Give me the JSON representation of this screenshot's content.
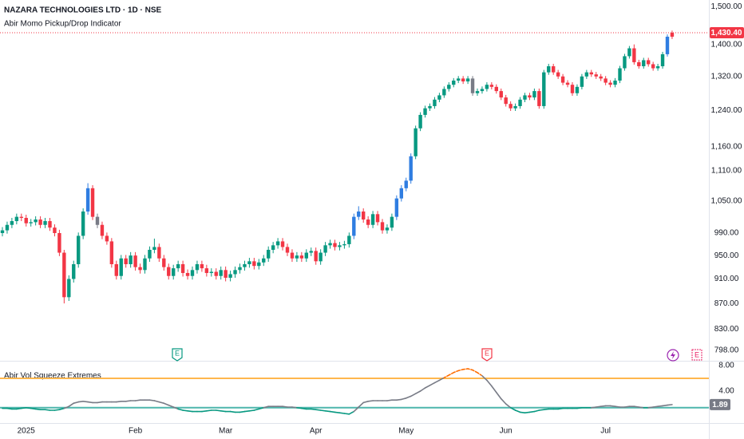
{
  "chart_data": [
    {
      "type": "candlestick",
      "title": "NAZARA TECHNOLOGIES LTD · 1D · NSE",
      "subtitle": "Abir Momo Pickup/Drop Indicator",
      "categories": [
        null,
        null,
        null,
        null,
        null,
        "2025",
        null,
        null,
        null,
        null,
        null,
        null,
        null,
        null,
        null,
        null,
        null,
        null,
        null,
        null,
        null,
        null,
        null,
        null,
        null,
        null,
        null,
        null,
        "Feb",
        null,
        null,
        null,
        null,
        null,
        null,
        null,
        null,
        null,
        null,
        null,
        null,
        null,
        null,
        null,
        null,
        null,
        null,
        "Mar",
        null,
        null,
        null,
        null,
        null,
        null,
        null,
        null,
        null,
        null,
        null,
        null,
        null,
        null,
        null,
        null,
        null,
        null,
        "Apr",
        null,
        null,
        null,
        null,
        null,
        null,
        null,
        null,
        null,
        null,
        null,
        null,
        null,
        null,
        null,
        null,
        null,
        null,
        "May",
        null,
        null,
        null,
        null,
        null,
        null,
        null,
        null,
        null,
        null,
        null,
        null,
        null,
        null,
        null,
        null,
        null,
        null,
        null,
        null,
        "Jun",
        null,
        null,
        null,
        null,
        null,
        null,
        null,
        null,
        null,
        null,
        null,
        null,
        null,
        null,
        null,
        null,
        null,
        null,
        null,
        null,
        "Jul",
        null,
        null,
        null,
        null,
        null,
        null,
        null,
        null,
        null,
        null,
        null,
        null,
        null,
        null
      ],
      "open": [
        990,
        995,
        1005,
        1012,
        1020,
        1018,
        1008,
        1010,
        1015,
        1005,
        1012,
        1000,
        990,
        955,
        880,
        910,
        935,
        985,
        1030,
        1075,
        1020,
        1005,
        985,
        975,
        935,
        915,
        945,
        935,
        950,
        930,
        925,
        945,
        960,
        965,
        945,
        930,
        915,
        928,
        935,
        920,
        915,
        925,
        935,
        928,
        920,
        922,
        915,
        925,
        912,
        918,
        925,
        930,
        935,
        940,
        932,
        938,
        945,
        960,
        968,
        975,
        965,
        955,
        945,
        950,
        945,
        955,
        958,
        940,
        955,
        968,
        972,
        965,
        968,
        970,
        985,
        1020,
        1030,
        1015,
        1005,
        1025,
        1010,
        995,
        1000,
        1020,
        1055,
        1075,
        1090,
        1140,
        1200,
        1230,
        1245,
        1250,
        1265,
        1275,
        1290,
        1300,
        1310,
        1315,
        1308,
        1315,
        1280,
        1285,
        1290,
        1300,
        1295,
        1285,
        1270,
        1255,
        1245,
        1250,
        1265,
        1275,
        1270,
        1285,
        1250,
        1330,
        1345,
        1330,
        1320,
        1305,
        1300,
        1280,
        1295,
        1320,
        1330,
        1325,
        1320,
        1315,
        1305,
        1300,
        1310,
        1340,
        1370,
        1390,
        1355,
        1345,
        1360,
        1350,
        1340,
        1345,
        1375,
        1420
      ],
      "high": [
        1001,
        1011,
        1018,
        1026,
        1026,
        1024,
        1016,
        1021,
        1021,
        1018,
        1018,
        1006,
        996,
        960,
        916,
        941,
        991,
        1036,
        1085,
        1081,
        1026,
        1011,
        991,
        981,
        941,
        951,
        951,
        956,
        956,
        936,
        951,
        966,
        980,
        971,
        951,
        936,
        934,
        941,
        941,
        926,
        931,
        941,
        941,
        934,
        928,
        928,
        931,
        931,
        924,
        931,
        936,
        941,
        946,
        946,
        944,
        951,
        966,
        974,
        981,
        981,
        971,
        961,
        956,
        956,
        961,
        964,
        964,
        961,
        974,
        978,
        978,
        974,
        976,
        991,
        1026,
        1040,
        1036,
        1021,
        1031,
        1031,
        1016,
        1006,
        1026,
        1061,
        1081,
        1096,
        1146,
        1206,
        1236,
        1251,
        1256,
        1271,
        1281,
        1296,
        1306,
        1316,
        1321,
        1321,
        1321,
        1321,
        1291,
        1296,
        1306,
        1306,
        1301,
        1291,
        1276,
        1261,
        1256,
        1271,
        1281,
        1281,
        1291,
        1291,
        1336,
        1351,
        1351,
        1336,
        1326,
        1311,
        1306,
        1301,
        1326,
        1336,
        1336,
        1331,
        1326,
        1321,
        1311,
        1316,
        1346,
        1376,
        1396,
        1400,
        1361,
        1366,
        1366,
        1356,
        1351,
        1381,
        1426,
        1436
      ],
      "low": [
        984,
        989,
        999,
        1006,
        1012,
        1002,
        1002,
        1004,
        999,
        999,
        994,
        984,
        949,
        870,
        874,
        904,
        929,
        979,
        1024,
        1014,
        999,
        979,
        969,
        929,
        909,
        909,
        929,
        929,
        924,
        919,
        919,
        939,
        954,
        939,
        924,
        909,
        909,
        922,
        914,
        909,
        909,
        919,
        922,
        914,
        914,
        909,
        909,
        906,
        906,
        912,
        919,
        924,
        929,
        926,
        926,
        932,
        939,
        954,
        962,
        959,
        949,
        939,
        939,
        939,
        939,
        949,
        934,
        934,
        949,
        962,
        959,
        959,
        962,
        964,
        979,
        1014,
        1009,
        999,
        999,
        1004,
        989,
        989,
        994,
        1014,
        1049,
        1069,
        1084,
        1134,
        1194,
        1224,
        1239,
        1244,
        1259,
        1269,
        1284,
        1294,
        1304,
        1302,
        1302,
        1274,
        1274,
        1279,
        1284,
        1289,
        1279,
        1264,
        1249,
        1239,
        1239,
        1244,
        1259,
        1264,
        1264,
        1244,
        1244,
        1324,
        1324,
        1314,
        1299,
        1294,
        1274,
        1274,
        1289,
        1314,
        1319,
        1314,
        1309,
        1299,
        1294,
        1294,
        1304,
        1334,
        1364,
        1349,
        1339,
        1339,
        1344,
        1334,
        1334,
        1339,
        1369,
        1414
      ],
      "close": [
        995,
        1005,
        1012,
        1020,
        1018,
        1008,
        1010,
        1015,
        1005,
        1012,
        1000,
        990,
        955,
        880,
        910,
        935,
        985,
        1030,
        1075,
        1020,
        1005,
        985,
        975,
        935,
        915,
        945,
        935,
        950,
        930,
        925,
        945,
        960,
        965,
        945,
        930,
        915,
        928,
        935,
        920,
        915,
        925,
        935,
        928,
        920,
        922,
        915,
        925,
        912,
        918,
        925,
        930,
        935,
        940,
        932,
        938,
        945,
        960,
        968,
        975,
        965,
        955,
        945,
        950,
        945,
        955,
        958,
        940,
        955,
        968,
        972,
        965,
        968,
        970,
        985,
        1020,
        1030,
        1015,
        1005,
        1025,
        1010,
        995,
        1000,
        1020,
        1055,
        1075,
        1090,
        1140,
        1200,
        1230,
        1245,
        1250,
        1265,
        1275,
        1290,
        1300,
        1310,
        1315,
        1308,
        1315,
        1280,
        1285,
        1290,
        1300,
        1295,
        1285,
        1270,
        1255,
        1245,
        1250,
        1265,
        1275,
        1270,
        1285,
        1250,
        1330,
        1345,
        1330,
        1320,
        1305,
        1300,
        1280,
        1295,
        1320,
        1330,
        1325,
        1320,
        1315,
        1305,
        1300,
        1310,
        1340,
        1370,
        1390,
        1355,
        1345,
        1360,
        1350,
        1340,
        1345,
        1375,
        1420,
        1430.4
      ],
      "colors": [
        "#089981",
        "#089981",
        "#089981",
        "#089981",
        "#f23645",
        "#f23645",
        "#089981",
        "#089981",
        "#f23645",
        "#089981",
        "#f23645",
        "#f23645",
        "#f23645",
        "#f23645",
        "#089981",
        "#089981",
        "#089981",
        "#089981",
        "#2f7de1",
        "#f23645",
        "#787b86",
        "#f23645",
        "#f23645",
        "#f23645",
        "#f23645",
        "#089981",
        "#f23645",
        "#089981",
        "#f23645",
        "#f23645",
        "#089981",
        "#089981",
        "#089981",
        "#f23645",
        "#f23645",
        "#f23645",
        "#089981",
        "#089981",
        "#f23645",
        "#f23645",
        "#089981",
        "#089981",
        "#f23645",
        "#f23645",
        "#089981",
        "#f23645",
        "#089981",
        "#f23645",
        "#089981",
        "#089981",
        "#089981",
        "#089981",
        "#089981",
        "#f23645",
        "#089981",
        "#089981",
        "#089981",
        "#089981",
        "#089981",
        "#f23645",
        "#f23645",
        "#f23645",
        "#089981",
        "#f23645",
        "#089981",
        "#089981",
        "#f23645",
        "#089981",
        "#089981",
        "#089981",
        "#f23645",
        "#089981",
        "#089981",
        "#089981",
        "#2f7de1",
        "#2f7de1",
        "#f23645",
        "#f23645",
        "#089981",
        "#f23645",
        "#f23645",
        "#089981",
        "#089981",
        "#2f7de1",
        "#2f7de1",
        "#2f7de1",
        "#2f7de1",
        "#089981",
        "#089981",
        "#089981",
        "#089981",
        "#089981",
        "#089981",
        "#089981",
        "#089981",
        "#089981",
        "#089981",
        "#f23645",
        "#089981",
        "#787b86",
        "#089981",
        "#089981",
        "#089981",
        "#f23645",
        "#f23645",
        "#f23645",
        "#f23645",
        "#f23645",
        "#089981",
        "#089981",
        "#089981",
        "#f23645",
        "#089981",
        "#f23645",
        "#089981",
        "#089981",
        "#f23645",
        "#f23645",
        "#f23645",
        "#f23645",
        "#f23645",
        "#089981",
        "#089981",
        "#089981",
        "#f23645",
        "#f23645",
        "#f23645",
        "#f23645",
        "#f23645",
        "#089981",
        "#089981",
        "#089981",
        "#089981",
        "#f23645",
        "#f23645",
        "#089981",
        "#f23645",
        "#f23645",
        "#089981",
        "#089981",
        "#2f7de1",
        "#f23645"
      ],
      "log_scale": true,
      "ylim": [
        783,
        1519
      ],
      "yticks": [
        {
          "value": 1500,
          "label": "1,500.00"
        },
        {
          "value": 1400,
          "label": "1,400.00"
        },
        {
          "value": 1320,
          "label": "1,320.00"
        },
        {
          "value": 1240,
          "label": "1,240.00"
        },
        {
          "value": 1160,
          "label": "1,160.00"
        },
        {
          "value": 1110,
          "label": "1,110.00"
        },
        {
          "value": 1050,
          "label": "1,050.00"
        },
        {
          "value": 990,
          "label": "990.00"
        },
        {
          "value": 950,
          "label": "950.00"
        },
        {
          "value": 910,
          "label": "910.00"
        },
        {
          "value": 870,
          "label": "870.00"
        },
        {
          "value": 830,
          "label": "830.00"
        },
        {
          "value": 798,
          "label": "798.00"
        }
      ],
      "last_price": {
        "value": 1430.4,
        "label": "1,430.40"
      },
      "last_price_color": "#f23645",
      "events": [
        "E",
        "E",
        "E"
      ]
    },
    {
      "type": "line",
      "title": "Abir Vol Squeeze Extremes",
      "values": [
        1.3,
        1.3,
        1.2,
        1.2,
        1.3,
        1.4,
        1.3,
        1.2,
        1.1,
        1.1,
        1.0,
        1.0,
        1.1,
        1.3,
        1.6,
        2.1,
        2.3,
        2.4,
        2.3,
        2.2,
        2.2,
        2.3,
        2.3,
        2.3,
        2.3,
        2.4,
        2.4,
        2.5,
        2.5,
        2.6,
        2.6,
        2.6,
        2.5,
        2.3,
        2.1,
        1.8,
        1.5,
        1.2,
        1.0,
        0.9,
        0.8,
        0.8,
        0.8,
        0.9,
        1.0,
        1.0,
        0.9,
        0.8,
        0.8,
        0.7,
        0.7,
        0.8,
        0.9,
        1.0,
        1.2,
        1.4,
        1.6,
        1.6,
        1.6,
        1.6,
        1.5,
        1.5,
        1.4,
        1.3,
        1.2,
        1.2,
        1.1,
        1.0,
        0.9,
        0.8,
        0.7,
        0.6,
        0.5,
        0.4,
        0.8,
        1.5,
        2.2,
        2.4,
        2.5,
        2.5,
        2.5,
        2.5,
        2.6,
        2.6,
        2.7,
        2.9,
        3.2,
        3.6,
        4.0,
        4.5,
        4.9,
        5.3,
        5.7,
        6.1,
        6.5,
        6.9,
        7.2,
        7.4,
        7.5,
        7.3,
        6.9,
        6.4,
        5.7,
        4.8,
        3.8,
        2.8,
        2.0,
        1.4,
        1.0,
        0.7,
        0.6,
        0.7,
        0.8,
        1.0,
        1.1,
        1.2,
        1.2,
        1.2,
        1.3,
        1.3,
        1.3,
        1.3,
        1.4,
        1.4,
        1.4,
        1.5,
        1.6,
        1.7,
        1.7,
        1.6,
        1.5,
        1.5,
        1.6,
        1.6,
        1.5,
        1.4,
        1.4,
        1.5,
        1.6,
        1.7,
        1.8,
        1.89
      ],
      "color": "#787b86",
      "high_color": "#ff6d00",
      "low_color": "#089981",
      "upper_level": 6,
      "upper_level_color": "#ffb74d",
      "lower_level": 1.4,
      "lower_level_color": "#4db6ac",
      "ylim": [
        -1,
        8.75
      ],
      "yticks": [
        {
          "value": 8,
          "label": "8.00"
        },
        {
          "value": 4,
          "label": "4.00"
        }
      ]
    }
  ]
}
